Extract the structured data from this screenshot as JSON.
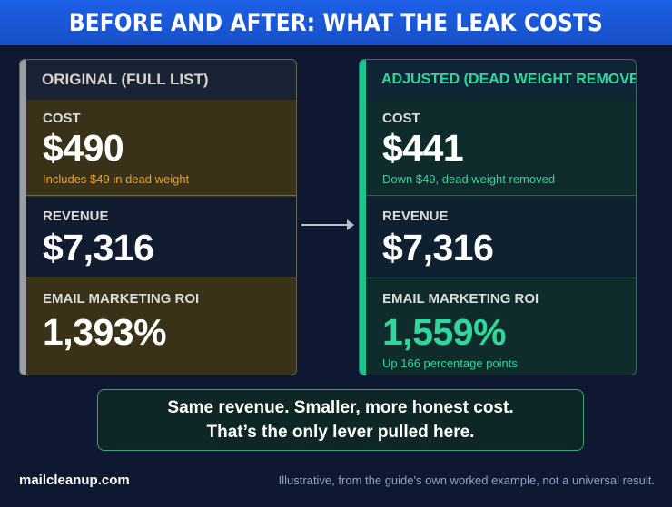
{
  "banner": {
    "title": "BEFORE AND AFTER: WHAT THE LEAK COSTS"
  },
  "original": {
    "header": "ORIGINAL (FULL LIST)",
    "cost_label": "COST",
    "cost_value": "$490",
    "cost_note": "Includes $49 in dead weight",
    "revenue_label": "REVENUE",
    "revenue_value": "$7,316",
    "roi_label": "EMAIL MARKETING  ROI",
    "roi_value": "1,393%"
  },
  "adjusted": {
    "header": "ADJUSTED (DEAD WEIGHT REMOVED)",
    "cost_label": "COST",
    "cost_value": "$441",
    "cost_note": "Down $49, dead weight removed",
    "revenue_label": "REVENUE",
    "revenue_value": "$7,316",
    "roi_label": "EMAIL MARKETING ROI",
    "roi_value": "1,559%",
    "roi_note": "Up 166 percentage points"
  },
  "summary": {
    "line1": "Same revenue. Smaller, more honest cost.",
    "line2": "That’s the only lever pulled here."
  },
  "footer": {
    "site": "mailcleanup.com",
    "disclaimer": "Illustrative, from the guide's own worked example, not a universal result."
  },
  "colors": {
    "banner": "#1c60e6",
    "background": "#0e1830",
    "accent_green": "#2fd79c",
    "accent_orange": "#f0a020"
  },
  "icons": {
    "arrow": "arrow-right-icon"
  }
}
